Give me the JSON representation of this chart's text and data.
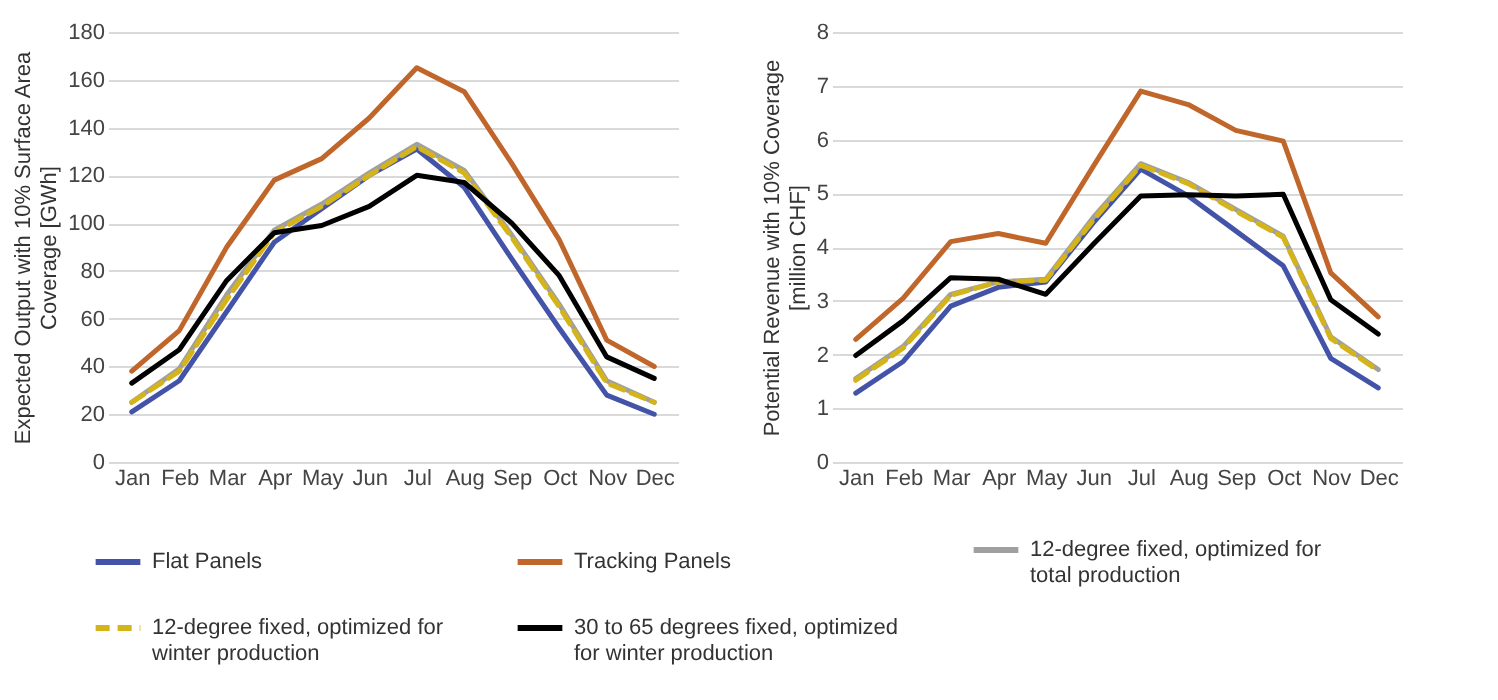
{
  "chart_data": [
    {
      "type": "line",
      "ylabel": "Expected Output with  10%  Surface Area Coverage [GWh]",
      "categories": [
        "Jan",
        "Feb",
        "Mar",
        "Apr",
        "May",
        "Jun",
        "Jul",
        "Aug",
        "Sep",
        "Oct",
        "Nov",
        "Dec"
      ],
      "ylim": [
        0,
        180
      ],
      "yticks": [
        0,
        20,
        40,
        60,
        80,
        100,
        120,
        140,
        160,
        180
      ],
      "grid": "y",
      "legend": "bottom",
      "marker": "none",
      "series": [
        {
          "name": "Flat Panels",
          "color": "#4353a8",
          "line_style": "solid",
          "values": [
            21,
            34,
            63,
            92,
            106,
            120,
            131,
            115,
            85,
            56,
            28,
            20
          ]
        },
        {
          "name": "Tracking Panels",
          "color": "#c0662b",
          "line_style": "solid",
          "values": [
            38,
            55,
            90,
            118,
            127,
            144,
            165,
            155,
            125,
            93,
            51,
            40
          ]
        },
        {
          "name": "12-degree fixed, optimized for total production",
          "color": "#a0a0a0",
          "line_style": "solid",
          "values": [
            25,
            39,
            70,
            97,
            108,
            121,
            133,
            122,
            95,
            66,
            34,
            25
          ]
        },
        {
          "name": "12-degree fixed, optimized for winter production",
          "color": "#d4b418",
          "line_style": "dashed",
          "values": [
            25,
            38,
            68,
            96,
            107,
            120,
            132,
            121,
            94,
            65,
            33,
            25
          ]
        },
        {
          "name": "30 to 65 degrees fixed, optimized for winter production",
          "color": "#000000",
          "line_style": "solid",
          "values": [
            33,
            47,
            76,
            96,
            99,
            107,
            120,
            117,
            100,
            78,
            44,
            35
          ]
        }
      ]
    },
    {
      "type": "line",
      "ylabel": "Potential Revenue with  10%  Coverage [million CHF]",
      "categories": [
        "Jan",
        "Feb",
        "Mar",
        "Apr",
        "May",
        "Jun",
        "Jul",
        "Aug",
        "Sep",
        "Oct",
        "Nov",
        "Dec"
      ],
      "ylim": [
        0,
        8
      ],
      "yticks": [
        0,
        1,
        2,
        3,
        4,
        5,
        6,
        7,
        8
      ],
      "grid": "y",
      "legend": "bottom",
      "marker": "none",
      "series": [
        {
          "name": "Flat Panels",
          "color": "#4353a8",
          "line_style": "solid",
          "values": [
            1.28,
            1.87,
            2.9,
            3.25,
            3.35,
            4.45,
            5.45,
            4.95,
            4.3,
            3.65,
            1.93,
            1.38
          ]
        },
        {
          "name": "Tracking Panels",
          "color": "#c0662b",
          "line_style": "solid",
          "values": [
            2.28,
            3.05,
            4.1,
            4.25,
            4.07,
            5.5,
            6.9,
            6.65,
            6.17,
            5.97,
            3.52,
            2.7
          ]
        },
        {
          "name": "12-degree fixed, optimized for total production",
          "color": "#a0a0a0",
          "line_style": "solid",
          "values": [
            1.55,
            2.15,
            3.12,
            3.35,
            3.4,
            4.55,
            5.55,
            5.2,
            4.7,
            4.2,
            2.33,
            1.72
          ]
        },
        {
          "name": "12-degree fixed, optimized for winter production",
          "color": "#d4b418",
          "line_style": "dashed",
          "values": [
            1.52,
            2.12,
            3.1,
            3.35,
            3.38,
            4.5,
            5.52,
            5.18,
            4.67,
            4.18,
            2.3,
            1.7
          ]
        },
        {
          "name": "30 to 65 degrees fixed, optimized for winter production",
          "color": "#000000",
          "line_style": "solid",
          "values": [
            1.98,
            2.63,
            3.43,
            3.4,
            3.12,
            4.05,
            4.95,
            4.97,
            4.95,
            4.98,
            3.02,
            2.38
          ]
        }
      ]
    }
  ]
}
